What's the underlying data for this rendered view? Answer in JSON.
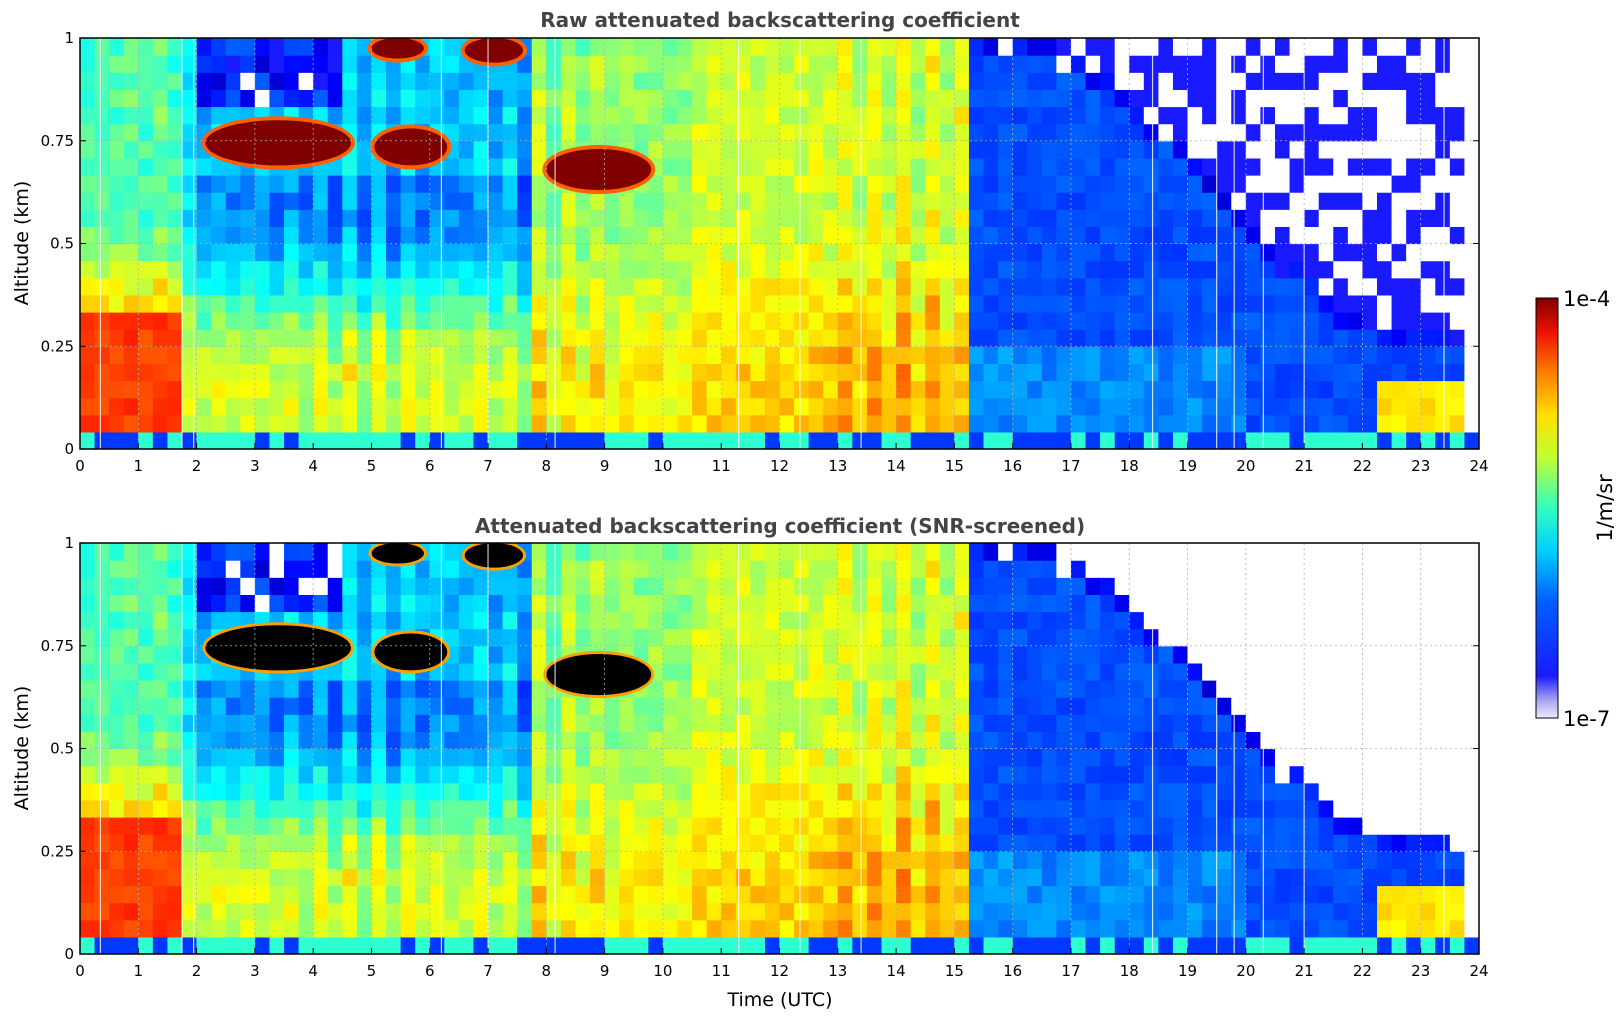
{
  "figure": {
    "colorbar": {
      "label": "1/m/sr",
      "max_label": "1e-4",
      "min_label": "1e-7",
      "scale": "log",
      "range": [
        1e-07,
        0.0001
      ],
      "colormap": "jet"
    }
  },
  "chart_data": [
    {
      "type": "heatmap",
      "title": "Raw attenuated backscattering coefficient",
      "xlabel": "",
      "ylabel": "Altitude (km)",
      "xlim": [
        0,
        24
      ],
      "ylim": [
        0,
        1
      ],
      "x_ticks": [
        0,
        1,
        2,
        3,
        4,
        5,
        6,
        7,
        8,
        9,
        10,
        11,
        12,
        13,
        14,
        15,
        16,
        17,
        18,
        19,
        20,
        21,
        22,
        23,
        24
      ],
      "y_ticks": [
        "0",
        "0.25",
        "0.5",
        "0.75",
        "1"
      ],
      "grid": true,
      "cloud_layers": [
        {
          "t_start": 2.15,
          "t_end": 4.65,
          "alt_base": 0.69,
          "alt_top": 0.8
        },
        {
          "t_start": 5.05,
          "t_end": 6.3,
          "alt_base": 0.69,
          "alt_top": 0.78
        },
        {
          "t_start": 5.0,
          "t_end": 5.9,
          "alt_base": 0.95,
          "alt_top": 1.0
        },
        {
          "t_start": 6.6,
          "t_end": 7.6,
          "alt_base": 0.94,
          "alt_top": 1.0
        },
        {
          "t_start": 8.0,
          "t_end": 9.8,
          "alt_base": 0.63,
          "alt_top": 0.73
        }
      ],
      "screened": false
    },
    {
      "type": "heatmap",
      "title": "Attenuated backscattering coefficient (SNR-screened)",
      "xlabel": "Time (UTC)",
      "ylabel": "Altitude (km)",
      "xlim": [
        0,
        24
      ],
      "ylim": [
        0,
        1
      ],
      "x_ticks": [
        0,
        1,
        2,
        3,
        4,
        5,
        6,
        7,
        8,
        9,
        10,
        11,
        12,
        13,
        14,
        15,
        16,
        17,
        18,
        19,
        20,
        21,
        22,
        23,
        24
      ],
      "y_ticks": [
        "0",
        "0.25",
        "0.5",
        "0.75",
        "1"
      ],
      "grid": true,
      "saturated_color": "#000000",
      "screened": true
    }
  ]
}
